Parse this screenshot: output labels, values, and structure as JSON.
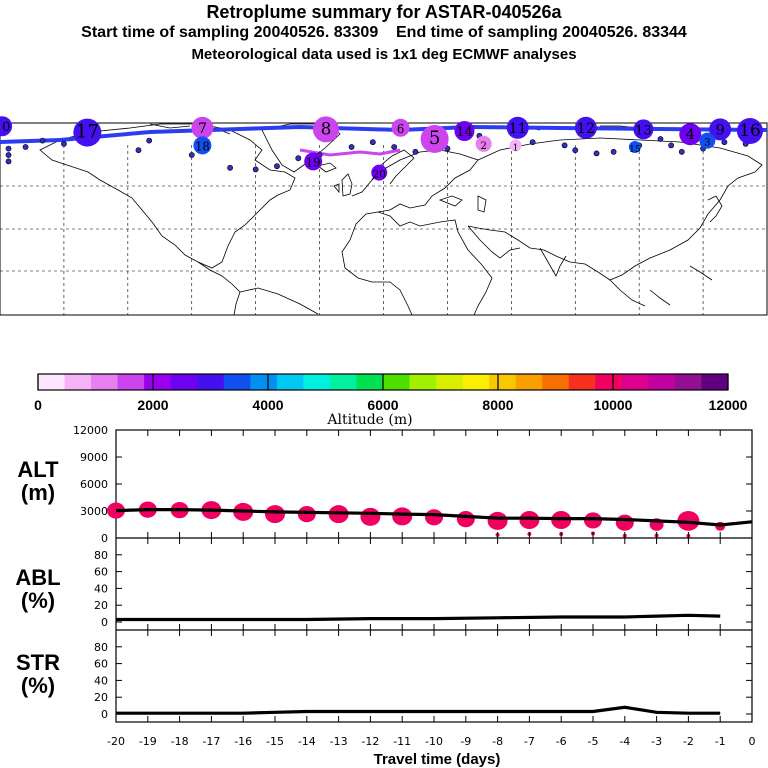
{
  "header": {
    "title": "Retroplume summary for ASTAR-040526a",
    "start_label": "Start time of sampling 20040526. 83309",
    "end_label": "End time of sampling 20040526. 83344",
    "met_label": "Meteorological data used is 1x1 deg ECMWF analyses"
  },
  "colorbar": {
    "label": "Altitude (m)",
    "tick_labels": [
      "0",
      "2000",
      "4000",
      "6000",
      "8000",
      "10000",
      "12000"
    ],
    "colors": [
      "#ffe6ff",
      "#f5b3f5",
      "#e680f0",
      "#cc44ee",
      "#9900ee",
      "#7000f0",
      "#4410f0",
      "#1050f0",
      "#0090f0",
      "#00c8f0",
      "#00f0e0",
      "#00f0a0",
      "#00e050",
      "#50e000",
      "#a0f000",
      "#d8f000",
      "#f8f000",
      "#f8c800",
      "#f8a000",
      "#f87000",
      "#f83020",
      "#f00060",
      "#e00090",
      "#c000a0",
      "#901090",
      "#600080"
    ],
    "colors_note": ""
  },
  "map": {
    "markers": [
      {
        "id": "10",
        "lon": -179,
        "lat": 88,
        "alt": 2800,
        "size": 10
      },
      {
        "id": "17",
        "lon": -139,
        "lat": 84,
        "alt": 3000,
        "size": 14
      },
      {
        "id": "7",
        "lon": -85,
        "lat": 87,
        "alt": 1600,
        "size": 11
      },
      {
        "id": "8",
        "lon": -27,
        "lat": 86,
        "alt": 1500,
        "size": 13
      },
      {
        "id": "18",
        "lon": -85,
        "lat": 76,
        "alt": 3300,
        "size": 9
      },
      {
        "id": "19",
        "lon": -33,
        "lat": 66,
        "alt": 2700,
        "size": 9
      },
      {
        "id": "20",
        "lon": -2,
        "lat": 59,
        "alt": 2500,
        "size": 8
      },
      {
        "id": "6",
        "lon": 8,
        "lat": 87,
        "alt": 1800,
        "size": 9
      },
      {
        "id": "5",
        "lon": 24,
        "lat": 80,
        "alt": 1700,
        "size": 14
      },
      {
        "id": "2",
        "lon": 47,
        "lat": 77,
        "alt": 1000,
        "size": 8
      },
      {
        "id": "1",
        "lon": 62,
        "lat": 76,
        "alt": 700,
        "size": 6
      },
      {
        "id": "14",
        "lon": 38,
        "lat": 85,
        "alt": 2600,
        "size": 10
      },
      {
        "id": "11",
        "lon": 63,
        "lat": 87,
        "alt": 2900,
        "size": 11
      },
      {
        "id": "12",
        "lon": 95,
        "lat": 87,
        "alt": 3000,
        "size": 11
      },
      {
        "id": "13",
        "lon": 122,
        "lat": 86,
        "alt": 2900,
        "size": 10
      },
      {
        "id": "9",
        "lon": 158,
        "lat": 86,
        "alt": 3000,
        "size": 11
      },
      {
        "id": "15",
        "lon": 118,
        "lat": 75,
        "alt": 3400,
        "size": 6
      },
      {
        "id": "16",
        "lon": 172,
        "lat": 85,
        "alt": 2900,
        "size": 13
      },
      {
        "id": "4",
        "lon": 144,
        "lat": 83,
        "alt": 2700,
        "size": 11
      },
      {
        "id": "3",
        "lon": 152,
        "lat": 79,
        "alt": 3300,
        "size": 8
      }
    ],
    "marker_labels_note": ""
  },
  "panels": {
    "alt": {
      "label": "ALT",
      "unit": "(m)"
    },
    "abl": {
      "label": "ABL",
      "unit": "(%)"
    },
    "str": {
      "label": "STR",
      "unit": "(%)"
    }
  },
  "chart_data": [
    {
      "type": "line",
      "title": "ALT (m)",
      "xlabel": "Travel time (days)",
      "ylabel": "ALT (m)",
      "ylim": [
        0,
        12000
      ],
      "xlim": [
        -20,
        0
      ],
      "yticks": [
        "0",
        "3000",
        "6000",
        "9000",
        "12000"
      ],
      "x": [
        -20,
        -19,
        -18,
        -17,
        -16,
        -15,
        -14,
        -13,
        -12,
        -11,
        -10,
        -9,
        -8,
        -7,
        -6,
        -5,
        -4,
        -3,
        -2,
        -1,
        0
      ],
      "values": [
        3050,
        3150,
        3150,
        3100,
        3000,
        2900,
        2850,
        2800,
        2750,
        2650,
        2600,
        2400,
        2200,
        2200,
        2150,
        2150,
        2050,
        1900,
        1750,
        1450,
        1800
      ],
      "spread_markers": [
        {
          "x": -20,
          "y": 3050,
          "size": 9
        },
        {
          "x": -19,
          "y": 3150,
          "size": 9
        },
        {
          "x": -18,
          "y": 3100,
          "size": 9
        },
        {
          "x": -17,
          "y": 3100,
          "size": 10
        },
        {
          "x": -16,
          "y": 2900,
          "size": 10
        },
        {
          "x": -15,
          "y": 2650,
          "size": 10
        },
        {
          "x": -14,
          "y": 2650,
          "size": 9
        },
        {
          "x": -13,
          "y": 2650,
          "size": 10
        },
        {
          "x": -12,
          "y": 2350,
          "size": 10
        },
        {
          "x": -11,
          "y": 2400,
          "size": 10
        },
        {
          "x": -10,
          "y": 2300,
          "size": 9
        },
        {
          "x": -9,
          "y": 2100,
          "size": 9
        },
        {
          "x": -8,
          "y": 1900,
          "size": 10
        },
        {
          "x": -7,
          "y": 2000,
          "size": 10
        },
        {
          "x": -6,
          "y": 2000,
          "size": 10
        },
        {
          "x": -5,
          "y": 1950,
          "size": 9
        },
        {
          "x": -4,
          "y": 1700,
          "size": 9
        },
        {
          "x": -3,
          "y": 1500,
          "size": 7
        },
        {
          "x": -2,
          "y": 1900,
          "size": 11
        },
        {
          "x": -1,
          "y": 1300,
          "size": 5
        }
      ]
    },
    {
      "type": "line",
      "title": "ABL (%)",
      "ylabel": "ABL (%)",
      "ylim": [
        0,
        100
      ],
      "xlim": [
        -20,
        0
      ],
      "yticks": [
        "0",
        "20",
        "40",
        "60",
        "80"
      ],
      "x": [
        -20,
        -18,
        -16,
        -14,
        -12,
        -10,
        -8,
        -6,
        -4,
        -3,
        -2,
        -1
      ],
      "values": [
        3,
        3,
        3,
        3,
        4,
        4,
        5,
        6,
        6,
        7,
        8,
        7
      ]
    },
    {
      "type": "line",
      "title": "STR (%)",
      "ylabel": "STR (%)",
      "ylim": [
        0,
        100
      ],
      "xlim": [
        -20,
        0
      ],
      "yticks": [
        "0",
        "20",
        "40",
        "60",
        "80"
      ],
      "x": [
        -20,
        -18,
        -16,
        -15,
        -14,
        -10,
        -8,
        -6,
        -5,
        -4,
        -3,
        -2,
        -1
      ],
      "values": [
        1,
        1,
        1,
        2,
        3,
        3,
        3,
        3,
        3,
        8,
        2,
        1,
        1
      ]
    }
  ],
  "xaxis": {
    "tick_labels": [
      "-20",
      "-19",
      "-18",
      "-17",
      "-16",
      "-15",
      "-14",
      "-13",
      "-12",
      "-11",
      "-10",
      "-9",
      "-8",
      "-7",
      "-6",
      "-5",
      "-4",
      "-3",
      "-2",
      "-1",
      "0"
    ],
    "label": "Travel time (days)"
  }
}
